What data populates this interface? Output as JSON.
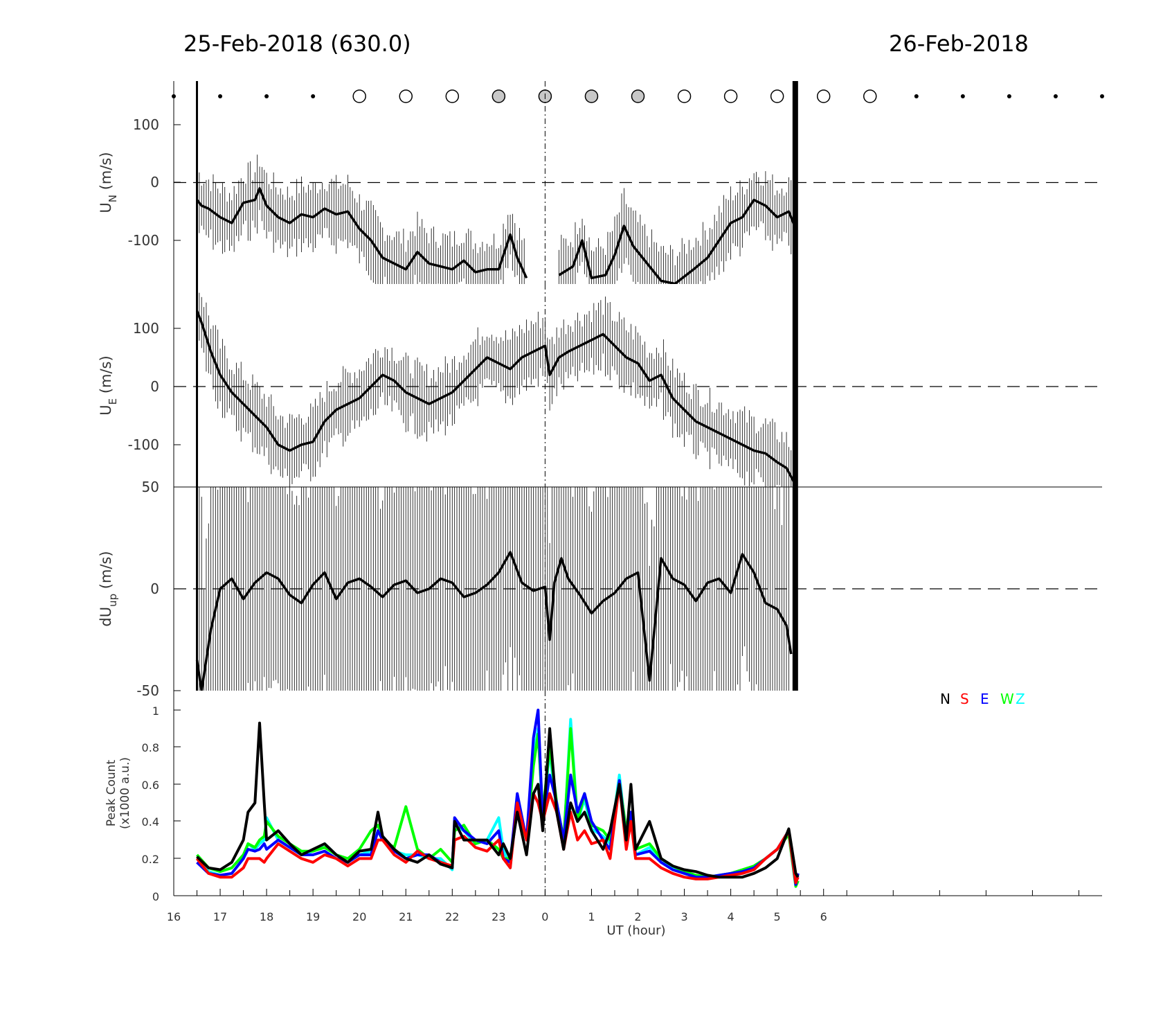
{
  "header": {
    "left_date": "25-Feb-2018 (630.0)",
    "right_date": "26-Feb-2018"
  },
  "xaxis": {
    "label": "UT (hour)",
    "ticks": [
      "16",
      "17",
      "18",
      "19",
      "20",
      "21",
      "22",
      "23",
      "0",
      "1",
      "2",
      "3",
      "4",
      "5",
      "6"
    ]
  },
  "cloud_markers": {
    "states": [
      "dot",
      "dot",
      "dot",
      "dot",
      "open",
      "open",
      "open",
      "gray",
      "gray",
      "gray",
      "gray",
      "open",
      "open",
      "open",
      "open",
      "open",
      "dot",
      "dot",
      "dot",
      "dot",
      "dot"
    ]
  },
  "colors": {
    "N": "#000000",
    "S": "#ff0000",
    "E": "#0000ff",
    "W": "#00ff00",
    "Z": "#00ffff",
    "marker_gray": "#c8c8c8"
  },
  "chart_data": [
    {
      "type": "line",
      "ylabel": "U",
      "ylabel_sub": "N",
      "ylabel_unit": "(m/s)",
      "yticks": [
        "100",
        "0",
        "-100"
      ],
      "ylim": [
        -175,
        165
      ],
      "x": [
        16.5,
        16.6,
        16.75,
        17,
        17.25,
        17.5,
        17.75,
        17.85,
        18,
        18.25,
        18.5,
        18.75,
        19,
        19.25,
        19.5,
        19.75,
        20,
        20.25,
        20.5,
        20.75,
        21,
        21.25,
        21.5,
        21.75,
        22,
        22.25,
        22.5,
        22.75,
        23,
        23.25,
        23.4,
        23.6
      ],
      "y": [
        -30,
        -40,
        -45,
        -60,
        -70,
        -35,
        -30,
        -10,
        -40,
        -60,
        -70,
        -55,
        -60,
        -45,
        -55,
        -50,
        -80,
        -100,
        -130,
        -140,
        -150,
        -120,
        -140,
        -145,
        -150,
        -135,
        -155,
        -150,
        -150,
        -90,
        -130,
        -165
      ],
      "x2": [
        24.3,
        24.6,
        24.8,
        25,
        25.3,
        25.5,
        25.7,
        25.9,
        26.2,
        26.5,
        26.8,
        27.2,
        27.5,
        27.75,
        28,
        28.25,
        28.5,
        28.75,
        29,
        29.25,
        29.4
      ],
      "y2": [
        -160,
        -145,
        -100,
        -165,
        -160,
        -125,
        -75,
        -110,
        -140,
        -170,
        -175,
        -150,
        -130,
        -100,
        -70,
        -60,
        -30,
        -40,
        -60,
        -50,
        -80
      ],
      "errorbar_halfwidth": 50
    },
    {
      "type": "line",
      "ylabel": "U",
      "ylabel_sub": "E",
      "ylabel_unit": "(m/s)",
      "yticks": [
        "100",
        "0",
        "-100"
      ],
      "ylim": [
        -175,
        175
      ],
      "x": [
        16.5,
        16.6,
        16.8,
        17,
        17.25,
        17.5,
        17.75,
        18,
        18.25,
        18.5,
        18.75,
        19,
        19.25,
        19.5,
        19.75,
        20,
        20.25,
        20.5,
        20.75,
        21,
        21.25,
        21.5,
        21.75,
        22,
        22.25,
        22.5,
        22.75,
        23,
        23.25,
        23.5,
        23.75,
        24,
        24.1,
        24.3,
        24.5,
        24.75,
        25,
        25.25,
        25.5,
        25.75,
        26,
        26.25,
        26.5,
        26.75,
        27,
        27.25,
        27.5,
        27.75,
        28,
        28.25,
        28.5,
        28.75,
        29,
        29.2,
        29.4
      ],
      "y": [
        130,
        110,
        60,
        20,
        -10,
        -30,
        -50,
        -70,
        -100,
        -110,
        -100,
        -95,
        -60,
        -40,
        -30,
        -20,
        0,
        20,
        10,
        -10,
        -20,
        -30,
        -20,
        -10,
        10,
        30,
        50,
        40,
        30,
        50,
        60,
        70,
        20,
        50,
        60,
        70,
        80,
        90,
        70,
        50,
        40,
        10,
        20,
        -20,
        -40,
        -60,
        -70,
        -80,
        -90,
        -100,
        -110,
        -115,
        -130,
        -140,
        -170
      ],
      "errorbar_halfwidth": 50
    },
    {
      "type": "line",
      "ylabel": "dU",
      "ylabel_sub": "up",
      "ylabel_unit": "(m/s)",
      "yticks": [
        "50",
        "0",
        "-50"
      ],
      "ylim": [
        -50,
        50
      ],
      "x": [
        16.5,
        16.6,
        16.8,
        17,
        17.25,
        17.5,
        17.75,
        18,
        18.25,
        18.5,
        18.75,
        19,
        19.25,
        19.5,
        19.75,
        20,
        20.25,
        20.5,
        20.75,
        21,
        21.25,
        21.5,
        21.75,
        22,
        22.25,
        22.5,
        22.75,
        23,
        23.25,
        23.5,
        23.75,
        24,
        24.1,
        24.2,
        24.35,
        24.5,
        24.75,
        25,
        25.25,
        25.5,
        25.75,
        26,
        26.25,
        26.5,
        26.75,
        27,
        27.25,
        27.5,
        27.75,
        28,
        28.25,
        28.5,
        28.75,
        29,
        29.2,
        29.3
      ],
      "y": [
        -35,
        -50,
        -20,
        0,
        5,
        -5,
        3,
        8,
        5,
        -3,
        -7,
        2,
        8,
        -5,
        3,
        5,
        1,
        -4,
        2,
        4,
        -2,
        0,
        5,
        3,
        -4,
        -2,
        2,
        8,
        18,
        3,
        -1,
        1,
        -25,
        3,
        15,
        5,
        -3,
        -12,
        -6,
        -2,
        5,
        8,
        -45,
        15,
        5,
        2,
        -6,
        3,
        5,
        -2,
        17,
        8,
        -7,
        -10,
        -18,
        -32
      ],
      "errorbar_halfwidth": 70
    },
    {
      "type": "line",
      "ylabel": "Peak Count",
      "ylabel_unit": "(x1000 a.u.)",
      "yticks": [
        "1",
        "0.8",
        "0.6",
        "0.4",
        "0.2",
        "0"
      ],
      "ylim": [
        0,
        1.0
      ],
      "legend": [
        "N",
        "S",
        "E",
        "W",
        "Z"
      ],
      "legend_position": "top-right",
      "x": [
        16.5,
        16.75,
        17,
        17.25,
        17.5,
        17.6,
        17.75,
        17.85,
        17.95,
        18,
        18.25,
        18.5,
        18.75,
        19,
        19.25,
        19.5,
        19.75,
        20,
        20.25,
        20.4,
        20.5,
        20.75,
        21,
        21.25,
        21.5,
        21.75,
        22,
        22.05,
        22.25,
        22.5,
        22.75,
        23,
        23.1,
        23.25,
        23.4,
        23.6,
        23.75,
        23.85,
        23.95,
        24.1,
        24.25,
        24.4,
        24.55,
        24.7,
        24.85,
        25,
        25.25,
        25.4,
        25.6,
        25.75,
        25.85,
        25.95,
        26.25,
        26.5,
        26.75,
        27,
        27.25,
        27.5,
        27.75,
        28,
        28.25,
        28.5,
        28.75,
        29,
        29.25,
        29.4,
        29.45
      ],
      "series": [
        {
          "name": "N",
          "values": [
            0.21,
            0.15,
            0.14,
            0.18,
            0.3,
            0.45,
            0.5,
            0.93,
            0.5,
            0.3,
            0.35,
            0.28,
            0.22,
            0.25,
            0.28,
            0.22,
            0.18,
            0.24,
            0.25,
            0.45,
            0.32,
            0.25,
            0.2,
            0.18,
            0.22,
            0.17,
            0.15,
            0.4,
            0.3,
            0.3,
            0.3,
            0.22,
            0.28,
            0.2,
            0.45,
            0.22,
            0.55,
            0.6,
            0.35,
            0.9,
            0.45,
            0.25,
            0.5,
            0.4,
            0.45,
            0.35,
            0.25,
            0.35,
            0.6,
            0.3,
            0.6,
            0.25,
            0.4,
            0.2,
            0.16,
            0.14,
            0.13,
            0.11,
            0.1,
            0.1,
            0.1,
            0.12,
            0.15,
            0.2,
            0.36,
            0.12,
            0.1
          ]
        },
        {
          "name": "S",
          "values": [
            0.2,
            0.12,
            0.1,
            0.1,
            0.15,
            0.2,
            0.2,
            0.2,
            0.18,
            0.2,
            0.28,
            0.24,
            0.2,
            0.18,
            0.22,
            0.2,
            0.16,
            0.2,
            0.2,
            0.3,
            0.3,
            0.22,
            0.18,
            0.24,
            0.2,
            0.18,
            0.16,
            0.3,
            0.32,
            0.26,
            0.24,
            0.3,
            0.2,
            0.15,
            0.5,
            0.3,
            0.55,
            0.5,
            0.4,
            0.55,
            0.45,
            0.25,
            0.45,
            0.3,
            0.35,
            0.28,
            0.3,
            0.2,
            0.6,
            0.25,
            0.4,
            0.2,
            0.2,
            0.15,
            0.12,
            0.1,
            0.09,
            0.09,
            0.1,
            0.11,
            0.12,
            0.14,
            0.2,
            0.25,
            0.35,
            0.07,
            0.1
          ]
        },
        {
          "name": "E",
          "values": [
            0.18,
            0.12,
            0.11,
            0.12,
            0.2,
            0.25,
            0.24,
            0.25,
            0.28,
            0.25,
            0.3,
            0.26,
            0.22,
            0.22,
            0.24,
            0.2,
            0.18,
            0.22,
            0.22,
            0.35,
            0.3,
            0.24,
            0.2,
            0.22,
            0.22,
            0.18,
            0.15,
            0.42,
            0.35,
            0.3,
            0.28,
            0.35,
            0.2,
            0.18,
            0.55,
            0.3,
            0.85,
            1.0,
            0.4,
            0.65,
            0.5,
            0.3,
            0.65,
            0.45,
            0.55,
            0.4,
            0.3,
            0.25,
            0.62,
            0.3,
            0.45,
            0.22,
            0.24,
            0.18,
            0.14,
            0.12,
            0.1,
            0.1,
            0.11,
            0.12,
            0.13,
            0.15,
            0.2,
            0.25,
            0.35,
            0.06,
            0.12
          ]
        },
        {
          "name": "W",
          "values": [
            0.22,
            0.15,
            0.13,
            0.15,
            0.22,
            0.28,
            0.26,
            0.3,
            0.32,
            0.4,
            0.32,
            0.28,
            0.24,
            0.24,
            0.26,
            0.22,
            0.2,
            0.25,
            0.35,
            0.38,
            0.3,
            0.26,
            0.48,
            0.25,
            0.2,
            0.25,
            0.18,
            0.35,
            0.38,
            0.28,
            0.3,
            0.25,
            0.2,
            0.2,
            0.48,
            0.3,
            0.7,
            0.87,
            0.45,
            0.8,
            0.5,
            0.3,
            0.9,
            0.4,
            0.55,
            0.38,
            0.35,
            0.3,
            0.62,
            0.35,
            0.4,
            0.25,
            0.28,
            0.2,
            0.16,
            0.13,
            0.11,
            0.1,
            0.11,
            0.12,
            0.14,
            0.16,
            0.2,
            0.25,
            0.33,
            0.05,
            0.08
          ]
        },
        {
          "name": "Z",
          "values": [
            0.2,
            0.13,
            0.11,
            0.12,
            0.2,
            0.28,
            0.25,
            0.28,
            0.3,
            0.42,
            0.3,
            0.26,
            0.22,
            0.24,
            0.28,
            0.22,
            0.18,
            0.22,
            0.24,
            0.35,
            0.3,
            0.24,
            0.22,
            0.22,
            0.2,
            0.2,
            0.14,
            0.38,
            0.35,
            0.28,
            0.3,
            0.42,
            0.25,
            0.15,
            0.52,
            0.3,
            0.75,
            0.9,
            0.42,
            0.78,
            0.45,
            0.28,
            0.95,
            0.4,
            0.52,
            0.36,
            0.32,
            0.28,
            0.65,
            0.32,
            0.4,
            0.22,
            0.26,
            0.18,
            0.15,
            0.12,
            0.1,
            0.1,
            0.1,
            0.11,
            0.13,
            0.15,
            0.2,
            0.25,
            0.35,
            0.06,
            0.08
          ]
        }
      ]
    }
  ]
}
